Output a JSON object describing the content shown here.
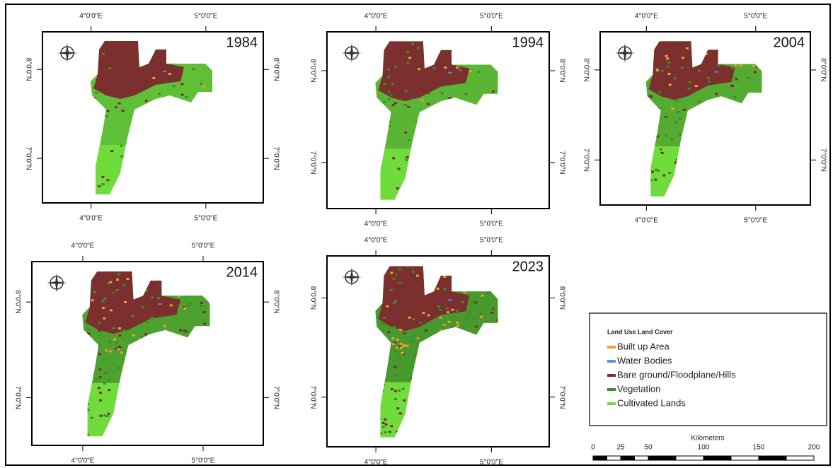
{
  "maps": {
    "panels": [
      {
        "year": "1984"
      },
      {
        "year": "1994"
      },
      {
        "year": "2004"
      },
      {
        "year": "2014"
      },
      {
        "year": "2023"
      }
    ],
    "longitude_labels": [
      "4°0'0\"E",
      "5°0'0\"E"
    ],
    "latitude_labels": [
      "8°0'0\"N",
      "7°0'0\"N"
    ],
    "legend": {
      "title": "Land Use Land Cover",
      "items": [
        {
          "name": "Built up Area",
          "color": "#f0a030"
        },
        {
          "name": "Water Bodies",
          "color": "#5b8fe0"
        },
        {
          "name": "Bare ground/Floodplane/Hills",
          "color": "#7b2f2f"
        },
        {
          "name": "Vegetation",
          "color": "#3f8a2a"
        },
        {
          "name": "Cultivated Lands",
          "color": "#70dc3c"
        }
      ]
    },
    "scale_bar": {
      "title": "Kilometers",
      "labels": [
        0,
        25,
        50,
        100,
        150,
        200
      ]
    }
  }
}
